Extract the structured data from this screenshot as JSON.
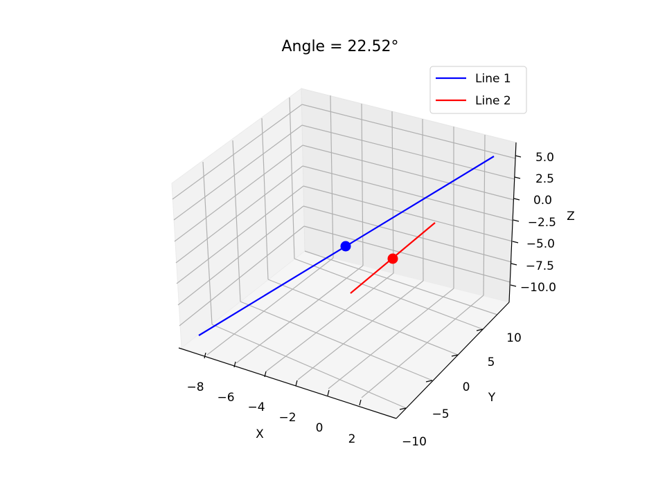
{
  "chart_data": {
    "type": "line",
    "projection": "3d",
    "title": "Angle = 22.52°",
    "xlabel": "X",
    "ylabel": "Y",
    "zlabel": "Z",
    "xlim": [
      -9,
      4
    ],
    "ylim": [
      -10,
      13
    ],
    "zlim": [
      -12,
      6
    ],
    "x_ticks": [
      "−8",
      "−6",
      "−4",
      "−2",
      "0",
      "2"
    ],
    "y_ticks": [
      "−10",
      "−5",
      "0",
      "5",
      "10"
    ],
    "z_ticks": [
      "5.0",
      "2.5",
      "0.0",
      "−2.5",
      "−5.0",
      "−7.5",
      "−10.0"
    ],
    "grid": true,
    "legend_position": "top-right",
    "series": [
      {
        "name": "Line 1",
        "color": "#0000ff",
        "start": [
          -8,
          -8,
          -10
        ],
        "end": [
          3,
          12,
          5
        ]
      },
      {
        "name": "Line 2",
        "color": "#ff0000",
        "start": [
          -1,
          0,
          -7
        ],
        "end": [
          2,
          5,
          0
        ]
      }
    ],
    "points": [
      {
        "color": "#0000ff",
        "xyz": [
          -2,
          0,
          -5
        ]
      },
      {
        "color": "#ff0000",
        "xyz": [
          0.5,
          2.5,
          -4
        ]
      }
    ]
  }
}
